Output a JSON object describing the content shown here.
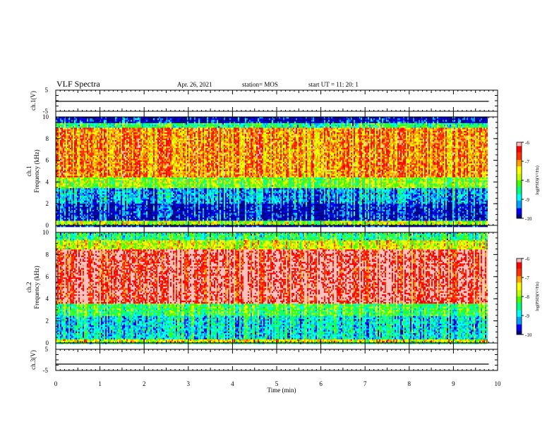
{
  "header": {
    "title": "VLF Spectra",
    "date": "Apr. 26, 2021",
    "station": "station= MOS",
    "start": "start  UT =   11: 20: 1"
  },
  "chart_data": [
    {
      "type": "line",
      "panel": "ch1-voltage",
      "ylabel": "ch.1(V)",
      "ylim": [
        -5,
        5
      ],
      "yticks": [
        "5",
        "-5"
      ],
      "x": [
        0,
        1,
        2,
        3,
        4,
        5,
        6,
        7,
        8,
        9,
        9.8
      ],
      "series": [
        {
          "values": [
            -0.3,
            -0.3,
            -0.3,
            -0.3,
            -0.3,
            -0.3,
            -0.3,
            -0.3,
            -0.3,
            -0.3,
            -0.3
          ]
        }
      ]
    },
    {
      "type": "heatmap",
      "panel": "ch1-spectrogram",
      "ylabel": "ch.1\nFrequency (kHz)",
      "ylim": [
        0,
        10
      ],
      "yticks": [
        "0",
        "2",
        "4",
        "6",
        "8",
        "10"
      ],
      "xlim": [
        0,
        10
      ],
      "data_end_min": 9.8,
      "colorbar": {
        "label": "log(PSD)(V²/Hz)",
        "range": [
          -10,
          -6
        ],
        "ticks": [
          "-6",
          "-7",
          "-8",
          "-9",
          "-10"
        ]
      },
      "bands_log_psd": [
        {
          "freq_khz": [
            0,
            0.5
          ],
          "level": -7.8
        },
        {
          "freq_khz": [
            0.5,
            2.0
          ],
          "level": -9.7
        },
        {
          "freq_khz": [
            2.0,
            3.5
          ],
          "level": -9.2
        },
        {
          "freq_khz": [
            3.5,
            4.5
          ],
          "level": -8.0
        },
        {
          "freq_khz": [
            4.5,
            9.0
          ],
          "level": -7.0
        },
        {
          "freq_khz": [
            9.0,
            9.5
          ],
          "level": -8.5
        },
        {
          "freq_khz": [
            9.5,
            10
          ],
          "level": -9.8
        }
      ]
    },
    {
      "type": "heatmap",
      "panel": "ch2-spectrogram",
      "ylabel": "ch.2\nFrequency (kHz)",
      "ylim": [
        0,
        10
      ],
      "yticks": [
        "0",
        "2",
        "4",
        "6",
        "8",
        "10"
      ],
      "xlim": [
        0,
        10
      ],
      "data_end_min": 9.8,
      "colorbar": {
        "label": "log(PSD)(V²/Hz)",
        "range": [
          -10,
          -6
        ],
        "ticks": [
          "-6",
          "-7",
          "-8",
          "-9",
          "-10"
        ]
      },
      "bands_log_psd": [
        {
          "freq_khz": [
            0,
            0.3
          ],
          "level": -7.5
        },
        {
          "freq_khz": [
            0.3,
            2.5
          ],
          "level": -8.9
        },
        {
          "freq_khz": [
            2.5,
            3.5
          ],
          "level": -8.3
        },
        {
          "freq_khz": [
            3.5,
            8.5
          ],
          "level": -6.2
        },
        {
          "freq_khz": [
            8.5,
            9.3
          ],
          "level": -7.6
        },
        {
          "freq_khz": [
            9.3,
            10
          ],
          "level": -8.5
        }
      ]
    },
    {
      "type": "line",
      "panel": "ch3-voltage",
      "ylabel": "ch.3(V)",
      "ylim": [
        -5,
        5
      ],
      "yticks": [
        "5",
        "-5"
      ],
      "x": [
        0,
        1,
        2,
        3,
        4,
        5,
        6,
        7,
        8,
        9,
        9.8
      ],
      "series": [
        {
          "values": [
            -2,
            -2,
            -2,
            -2,
            -2,
            -2,
            -2,
            -2,
            -2,
            -2,
            -2
          ]
        }
      ]
    }
  ],
  "xaxis": {
    "label": "Time  (min)",
    "ticks": [
      "0",
      "1",
      "2",
      "3",
      "4",
      "5",
      "6",
      "7",
      "8",
      "9",
      "10"
    ],
    "range": [
      0,
      10
    ]
  },
  "colors": {
    "frame": "#000000",
    "colormap": [
      "#000080",
      "#0000ff",
      "#00a0ff",
      "#00ffff",
      "#00ff80",
      "#40ff00",
      "#c0ff00",
      "#ffff00",
      "#ffa000",
      "#ff3000",
      "#ff0000",
      "#ffc0c0"
    ]
  }
}
